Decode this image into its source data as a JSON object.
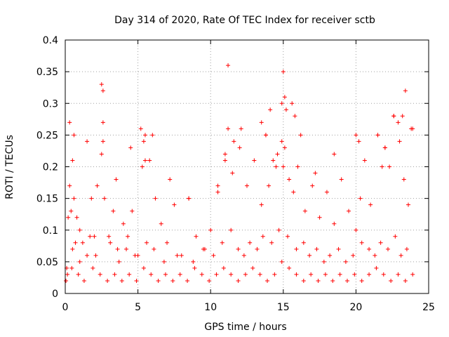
{
  "chart_data": {
    "type": "scatter",
    "title": "Day 314 of 2020, Rate Of TEC Index for receiver sctb",
    "xlabel": "GPS time / hours",
    "ylabel": "ROTI / TECUs",
    "xlim": [
      0,
      25
    ],
    "ylim": [
      0,
      0.4
    ],
    "xticks": [
      "0",
      "5",
      "10",
      "15",
      "20",
      "25"
    ],
    "yticks": [
      "0",
      "0.05",
      "0.1",
      "0.15",
      "0.2",
      "0.25",
      "0.3",
      "0.35",
      "0.4"
    ],
    "grid": true,
    "marker": "+",
    "color": "#ff0000",
    "series": [
      {
        "name": "",
        "x": [
          0.1,
          0.2,
          0.3,
          0.4,
          0.5,
          0.6,
          0.7,
          0.8,
          1.0,
          1.2,
          1.5,
          1.8,
          2.0,
          2.2,
          2.5,
          2.6,
          2.7,
          3.0,
          3.3,
          3.6,
          4.0,
          4.3,
          4.6,
          5.0,
          5.3,
          5.5,
          5.8,
          6.2,
          6.6,
          7.0,
          7.5,
          8.0,
          8.5,
          9.0,
          9.5,
          10.0,
          10.5,
          11.0,
          11.2,
          11.5,
          12.0,
          12.5,
          13.0,
          13.5,
          13.8,
          14.0,
          14.3,
          14.6,
          14.9,
          15.0,
          15.1,
          15.4,
          15.7,
          16.0,
          16.5,
          17.0,
          17.5,
          18.0,
          18.5,
          19.0,
          19.5,
          20.0,
          20.3,
          20.6,
          21.0,
          21.5,
          21.8,
          22.0,
          22.3,
          22.6,
          23.0,
          23.3,
          23.6,
          23.9,
          0.3,
          0.6,
          1.5,
          2.5,
          2.6,
          2.6,
          3.5,
          4.5,
          5.2,
          5.4,
          5.5,
          6.0,
          7.2,
          8.5,
          10.5,
          11.0,
          11.2,
          11.6,
          12.1,
          13.5,
          13.8,
          14.1,
          14.5,
          14.9,
          15.0,
          15.1,
          15.2,
          15.6,
          15.8,
          16.2,
          17.2,
          18.5,
          20.0,
          20.2,
          21.5,
          22.0,
          22.6,
          22.9,
          23.2,
          23.4,
          23.8,
          0.5,
          1.0,
          1.7,
          2.1,
          3.1,
          3.7,
          4.2,
          4.8,
          5.6,
          6.1,
          6.8,
          7.7,
          8.8,
          9.6,
          10.2,
          10.8,
          11.4,
          11.9,
          12.3,
          12.7,
          13.2,
          13.6,
          14.2,
          14.7,
          15.3,
          15.9,
          16.4,
          16.8,
          17.3,
          17.8,
          18.2,
          18.8,
          19.3,
          19.8,
          20.4,
          20.9,
          21.3,
          21.7,
          22.2,
          22.7,
          23.1,
          23.5,
          0.05,
          0.15,
          0.45,
          0.9,
          1.3,
          1.9,
          2.4,
          2.9,
          3.4,
          3.9,
          4.4,
          4.9,
          5.4,
          5.9,
          6.4,
          6.9,
          7.4,
          7.9,
          8.4,
          8.9,
          9.4,
          9.9,
          10.4,
          10.9,
          11.4,
          11.9,
          12.4,
          12.9,
          13.4,
          13.9,
          14.4,
          14.9,
          15.4,
          15.9,
          16.4,
          16.9,
          17.4,
          17.9,
          18.4,
          18.9,
          19.4,
          19.9,
          20.4,
          20.9,
          21.4,
          21.9,
          22.4,
          22.9,
          23.4,
          23.9
        ],
        "y": [
          0.04,
          0.12,
          0.17,
          0.13,
          0.21,
          0.15,
          0.08,
          0.12,
          0.1,
          0.08,
          0.06,
          0.15,
          0.09,
          0.17,
          0.22,
          0.24,
          0.15,
          0.09,
          0.13,
          0.07,
          0.11,
          0.09,
          0.13,
          0.06,
          0.2,
          0.25,
          0.21,
          0.15,
          0.11,
          0.08,
          0.14,
          0.06,
          0.15,
          0.09,
          0.07,
          0.1,
          0.16,
          0.21,
          0.26,
          0.19,
          0.23,
          0.17,
          0.21,
          0.14,
          0.25,
          0.17,
          0.21,
          0.22,
          0.24,
          0.2,
          0.23,
          0.18,
          0.16,
          0.2,
          0.13,
          0.17,
          0.12,
          0.16,
          0.11,
          0.18,
          0.13,
          0.1,
          0.15,
          0.21,
          0.14,
          0.25,
          0.2,
          0.23,
          0.2,
          0.28,
          0.24,
          0.18,
          0.14,
          0.26,
          0.27,
          0.25,
          0.24,
          0.33,
          0.32,
          0.27,
          0.18,
          0.23,
          0.26,
          0.24,
          0.21,
          0.25,
          0.18,
          0.15,
          0.17,
          0.22,
          0.36,
          0.24,
          0.26,
          0.27,
          0.25,
          0.29,
          0.2,
          0.3,
          0.35,
          0.31,
          0.29,
          0.3,
          0.28,
          0.25,
          0.19,
          0.22,
          0.25,
          0.24,
          0.25,
          0.23,
          0.28,
          0.27,
          0.28,
          0.32,
          0.26,
          0.07,
          0.05,
          0.09,
          0.06,
          0.08,
          0.05,
          0.07,
          0.06,
          0.08,
          0.07,
          0.05,
          0.06,
          0.05,
          0.07,
          0.06,
          0.08,
          0.1,
          0.07,
          0.06,
          0.08,
          0.07,
          0.09,
          0.08,
          0.1,
          0.09,
          0.07,
          0.08,
          0.06,
          0.07,
          0.05,
          0.06,
          0.07,
          0.05,
          0.06,
          0.08,
          0.07,
          0.06,
          0.08,
          0.07,
          0.09,
          0.06,
          0.07,
          0.02,
          0.03,
          0.04,
          0.03,
          0.02,
          0.04,
          0.03,
          0.02,
          0.03,
          0.02,
          0.03,
          0.02,
          0.04,
          0.03,
          0.02,
          0.03,
          0.02,
          0.03,
          0.02,
          0.04,
          0.03,
          0.02,
          0.03,
          0.04,
          0.03,
          0.02,
          0.03,
          0.04,
          0.03,
          0.02,
          0.03,
          0.05,
          0.04,
          0.03,
          0.02,
          0.03,
          0.02,
          0.03,
          0.02,
          0.03,
          0.02,
          0.03,
          0.02,
          0.03,
          0.04,
          0.03,
          0.02,
          0.03,
          0.02,
          0.03
        ]
      }
    ]
  }
}
